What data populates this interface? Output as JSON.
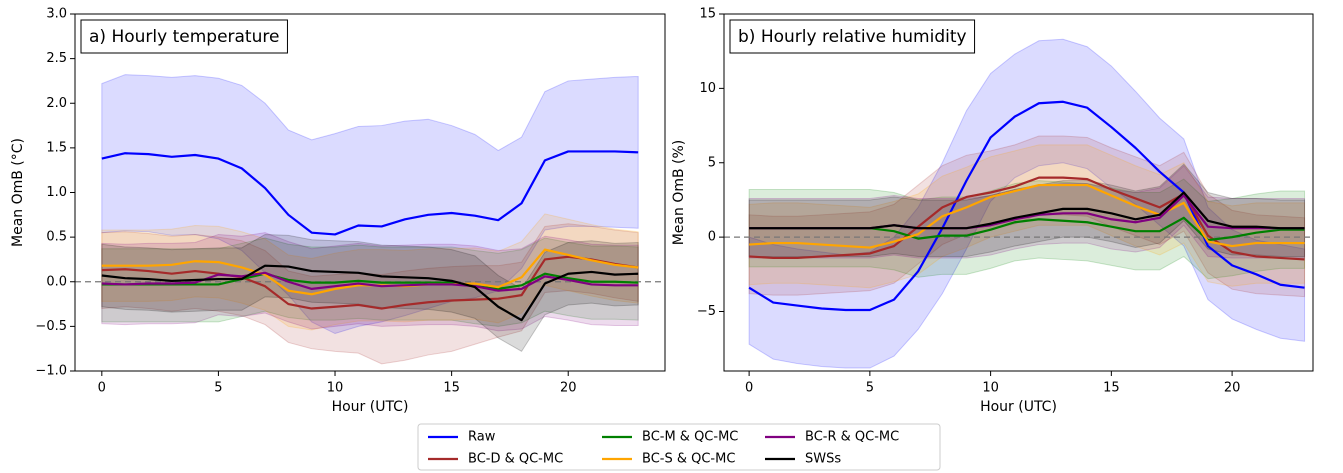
{
  "chart_data": [
    {
      "type": "line",
      "title": "a) Hourly temperature",
      "xlabel": "Hour (UTC)",
      "ylabel": "Mean OmB (°C)",
      "xlim": [
        -1.15,
        24.15
      ],
      "ylim": [
        -1.0,
        3.0
      ],
      "xticks": [
        0,
        5,
        10,
        15,
        20
      ],
      "yticks": [
        {
          "value": -1.0,
          "label": "−1.0"
        },
        {
          "value": -0.5,
          "label": "−0.5"
        },
        {
          "value": 0.0,
          "label": "0.0"
        },
        {
          "value": 0.5,
          "label": "0.5"
        },
        {
          "value": 1.0,
          "label": "1.0"
        },
        {
          "value": 1.5,
          "label": "1.5"
        },
        {
          "value": 2.0,
          "label": "2.0"
        },
        {
          "value": 2.5,
          "label": "2.5"
        },
        {
          "value": 3.0,
          "label": "3.0"
        }
      ],
      "reference_line": 0,
      "x": [
        0,
        1,
        2,
        3,
        4,
        5,
        6,
        7,
        8,
        9,
        10,
        11,
        12,
        13,
        14,
        15,
        16,
        17,
        18,
        19,
        20,
        21,
        22,
        23
      ],
      "series": [
        {
          "values": [
            1.38,
            1.44,
            1.43,
            1.4,
            1.42,
            1.38,
            1.27,
            1.05,
            0.75,
            0.55,
            0.53,
            0.63,
            0.62,
            0.7,
            0.75,
            0.77,
            0.74,
            0.69,
            0.88,
            1.36,
            1.46,
            1.46,
            1.46,
            1.45
          ],
          "upper": [
            2.22,
            2.32,
            2.31,
            2.29,
            2.31,
            2.28,
            2.2,
            2.0,
            1.7,
            1.59,
            1.66,
            1.74,
            1.75,
            1.8,
            1.82,
            1.75,
            1.65,
            1.47,
            1.62,
            2.13,
            2.25,
            2.27,
            2.29,
            2.3
          ],
          "lower": [
            0.55,
            0.57,
            0.56,
            0.52,
            0.53,
            0.48,
            0.35,
            0.1,
            -0.15,
            -0.45,
            -0.58,
            -0.5,
            -0.45,
            -0.38,
            -0.3,
            -0.22,
            -0.18,
            -0.1,
            0.15,
            0.58,
            0.62,
            0.62,
            0.61,
            0.6
          ]
        },
        {
          "values": [
            0.13,
            0.14,
            0.12,
            0.09,
            0.12,
            0.09,
            0.05,
            -0.05,
            -0.25,
            -0.3,
            -0.28,
            -0.26,
            -0.3,
            -0.26,
            -0.23,
            -0.21,
            -0.2,
            -0.19,
            -0.15,
            0.25,
            0.28,
            0.25,
            0.2,
            0.16
          ],
          "upper": [
            0.55,
            0.56,
            0.54,
            0.51,
            0.53,
            0.5,
            0.46,
            0.35,
            0.12,
            0.06,
            0.08,
            0.1,
            0.08,
            0.12,
            0.15,
            0.17,
            0.18,
            0.18,
            0.22,
            0.62,
            0.65,
            0.62,
            0.58,
            0.55
          ],
          "lower": [
            -0.3,
            -0.28,
            -0.3,
            -0.33,
            -0.3,
            -0.33,
            -0.38,
            -0.48,
            -0.68,
            -0.75,
            -0.78,
            -0.8,
            -0.92,
            -0.88,
            -0.82,
            -0.78,
            -0.7,
            -0.62,
            -0.55,
            -0.12,
            -0.1,
            -0.13,
            -0.18,
            -0.22
          ]
        },
        {
          "values": [
            -0.03,
            -0.03,
            -0.03,
            -0.03,
            -0.03,
            -0.03,
            0.03,
            0.09,
            0.02,
            -0.01,
            -0.01,
            0.01,
            -0.01,
            -0.01,
            -0.01,
            -0.01,
            -0.05,
            -0.08,
            -0.04,
            0.09,
            0.04,
            0.0,
            0.0,
            -0.01
          ],
          "upper": [
            0.37,
            0.37,
            0.37,
            0.37,
            0.37,
            0.37,
            0.43,
            0.49,
            0.42,
            0.39,
            0.39,
            0.41,
            0.39,
            0.39,
            0.39,
            0.39,
            0.35,
            0.32,
            0.36,
            0.49,
            0.44,
            0.4,
            0.4,
            0.39
          ],
          "lower": [
            -0.45,
            -0.45,
            -0.45,
            -0.45,
            -0.45,
            -0.45,
            -0.39,
            -0.33,
            -0.4,
            -0.43,
            -0.43,
            -0.41,
            -0.43,
            -0.43,
            -0.43,
            -0.43,
            -0.47,
            -0.5,
            -0.46,
            -0.33,
            -0.38,
            -0.42,
            -0.42,
            -0.43
          ]
        },
        {
          "values": [
            0.18,
            0.18,
            0.18,
            0.19,
            0.23,
            0.22,
            0.16,
            0.08,
            -0.1,
            -0.14,
            -0.08,
            -0.04,
            -0.04,
            -0.05,
            -0.03,
            -0.03,
            -0.02,
            -0.06,
            0.05,
            0.36,
            0.3,
            0.24,
            0.19,
            0.16
          ],
          "upper": [
            0.58,
            0.58,
            0.58,
            0.59,
            0.63,
            0.62,
            0.56,
            0.48,
            0.3,
            0.26,
            0.32,
            0.36,
            0.36,
            0.35,
            0.37,
            0.37,
            0.38,
            0.34,
            0.45,
            0.76,
            0.7,
            0.64,
            0.59,
            0.56
          ],
          "lower": [
            -0.22,
            -0.22,
            -0.22,
            -0.21,
            -0.17,
            -0.18,
            -0.24,
            -0.32,
            -0.5,
            -0.54,
            -0.48,
            -0.44,
            -0.44,
            -0.45,
            -0.43,
            -0.43,
            -0.42,
            -0.46,
            -0.35,
            -0.04,
            -0.1,
            -0.16,
            -0.21,
            -0.24
          ]
        },
        {
          "values": [
            -0.02,
            -0.03,
            -0.02,
            -0.02,
            -0.01,
            0.08,
            0.06,
            0.1,
            0.0,
            -0.08,
            -0.05,
            -0.02,
            -0.05,
            -0.04,
            -0.03,
            -0.03,
            -0.05,
            -0.1,
            -0.08,
            0.06,
            0.02,
            -0.03,
            -0.04,
            -0.04
          ],
          "upper": [
            0.43,
            0.42,
            0.43,
            0.43,
            0.44,
            0.53,
            0.51,
            0.55,
            0.45,
            0.37,
            0.4,
            0.43,
            0.4,
            0.41,
            0.42,
            0.42,
            0.4,
            0.35,
            0.37,
            0.51,
            0.47,
            0.42,
            0.41,
            0.41
          ],
          "lower": [
            -0.47,
            -0.48,
            -0.47,
            -0.47,
            -0.46,
            -0.37,
            -0.39,
            -0.35,
            -0.45,
            -0.53,
            -0.5,
            -0.47,
            -0.5,
            -0.49,
            -0.48,
            -0.48,
            -0.5,
            -0.55,
            -0.53,
            -0.39,
            -0.43,
            -0.48,
            -0.49,
            -0.49
          ]
        },
        {
          "values": [
            0.07,
            0.04,
            0.03,
            0.01,
            0.02,
            0.03,
            0.03,
            0.18,
            0.17,
            0.12,
            0.11,
            0.1,
            0.06,
            0.05,
            0.04,
            0.01,
            -0.06,
            -0.28,
            -0.43,
            -0.02,
            0.09,
            0.11,
            0.08,
            0.09
          ],
          "upper": [
            0.42,
            0.39,
            0.38,
            0.36,
            0.37,
            0.38,
            0.38,
            0.53,
            0.52,
            0.47,
            0.46,
            0.45,
            0.41,
            0.4,
            0.39,
            0.36,
            0.29,
            0.07,
            -0.08,
            0.33,
            0.44,
            0.46,
            0.43,
            0.44
          ],
          "lower": [
            -0.28,
            -0.31,
            -0.32,
            -0.34,
            -0.33,
            -0.32,
            -0.32,
            -0.17,
            -0.18,
            -0.23,
            -0.24,
            -0.25,
            -0.29,
            -0.3,
            -0.31,
            -0.34,
            -0.41,
            -0.63,
            -0.78,
            -0.37,
            -0.26,
            -0.24,
            -0.27,
            -0.26
          ]
        }
      ]
    },
    {
      "type": "line",
      "title": "b) Hourly relative humidity",
      "xlabel": "Hour (UTC)",
      "ylabel": "Mean OmB (%)",
      "xlim": [
        -1.04,
        23.35
      ],
      "ylim": [
        -9,
        15
      ],
      "xticks": [
        0,
        5,
        10,
        15,
        20
      ],
      "yticks": [
        {
          "value": -5,
          "label": "−5"
        },
        0,
        5,
        10,
        15
      ],
      "reference_line": 0,
      "x": [
        0,
        1,
        2,
        3,
        4,
        5,
        6,
        7,
        8,
        9,
        10,
        11,
        12,
        13,
        14,
        15,
        16,
        17,
        18,
        19,
        20,
        21,
        22,
        23
      ],
      "series": [
        {
          "values": [
            -3.4,
            -4.4,
            -4.6,
            -4.8,
            -4.9,
            -4.9,
            -4.2,
            -2.3,
            0.6,
            3.8,
            6.7,
            8.1,
            9.0,
            9.1,
            8.7,
            7.4,
            6.0,
            4.4,
            3.0,
            -0.6,
            -1.9,
            -2.5,
            -3.2,
            -3.4
          ],
          "upper": [
            0.0,
            -0.5,
            -0.8,
            -1.0,
            -1.2,
            -1.0,
            0.0,
            2.0,
            5.0,
            8.5,
            11.0,
            12.3,
            13.2,
            13.3,
            12.8,
            11.5,
            9.8,
            8.0,
            6.6,
            2.0,
            0.5,
            -0.2,
            -0.5,
            -0.8
          ],
          "lower": [
            -7.2,
            -8.2,
            -8.5,
            -8.7,
            -8.8,
            -8.8,
            -8.0,
            -6.2,
            -3.8,
            -0.8,
            2.4,
            4.0,
            4.8,
            5.0,
            4.6,
            3.3,
            2.2,
            0.8,
            -0.6,
            -4.2,
            -5.5,
            -6.2,
            -6.8,
            -7.0
          ]
        },
        {
          "values": [
            -1.3,
            -1.4,
            -1.4,
            -1.3,
            -1.2,
            -1.1,
            -0.6,
            0.7,
            2.0,
            2.7,
            3.0,
            3.4,
            4.0,
            4.0,
            3.9,
            3.2,
            2.6,
            2.0,
            2.9,
            0.1,
            -1.0,
            -1.3,
            -1.4,
            -1.5
          ],
          "upper": [
            1.5,
            1.4,
            1.4,
            1.5,
            1.6,
            1.7,
            2.2,
            3.5,
            4.8,
            5.5,
            5.8,
            6.2,
            6.8,
            6.8,
            6.7,
            6.0,
            5.4,
            4.8,
            5.7,
            2.9,
            1.8,
            1.5,
            1.4,
            1.3
          ],
          "lower": [
            -3.8,
            -3.9,
            -3.9,
            -3.8,
            -3.7,
            -3.6,
            -3.1,
            -1.8,
            -0.5,
            0.2,
            0.5,
            0.9,
            1.5,
            1.5,
            1.4,
            0.7,
            0.1,
            -0.5,
            0.4,
            -2.4,
            -3.5,
            -3.8,
            -3.9,
            -4.0
          ]
        },
        {
          "values": [
            0.6,
            0.6,
            0.6,
            0.6,
            0.6,
            0.6,
            0.4,
            -0.1,
            0.1,
            0.1,
            0.5,
            1.0,
            1.2,
            1.1,
            1.0,
            0.7,
            0.4,
            0.4,
            1.3,
            -0.2,
            0.0,
            0.3,
            0.5,
            0.5
          ],
          "upper": [
            3.2,
            3.2,
            3.2,
            3.2,
            3.2,
            3.2,
            3.0,
            2.5,
            2.7,
            2.7,
            3.1,
            3.6,
            3.8,
            3.7,
            3.6,
            3.3,
            3.0,
            3.0,
            3.9,
            2.4,
            2.6,
            2.9,
            3.1,
            3.1
          ],
          "lower": [
            -2.0,
            -2.0,
            -2.0,
            -2.0,
            -2.0,
            -2.0,
            -2.2,
            -2.7,
            -2.5,
            -2.5,
            -2.1,
            -1.6,
            -1.4,
            -1.5,
            -1.6,
            -1.9,
            -2.2,
            -2.2,
            -1.3,
            -2.8,
            -2.6,
            -2.3,
            -2.1,
            -2.1
          ]
        },
        {
          "values": [
            -0.5,
            -0.4,
            -0.4,
            -0.5,
            -0.6,
            -0.7,
            -0.3,
            0.2,
            1.4,
            2.0,
            2.7,
            3.1,
            3.5,
            3.5,
            3.5,
            2.8,
            2.1,
            1.5,
            2.3,
            -0.3,
            -0.6,
            -0.4,
            -0.4,
            -0.4
          ],
          "upper": [
            2.2,
            2.3,
            2.3,
            2.2,
            2.1,
            2.0,
            2.4,
            2.9,
            4.1,
            4.7,
            5.4,
            5.8,
            6.2,
            6.2,
            6.2,
            5.5,
            4.8,
            4.2,
            5.0,
            2.4,
            2.1,
            2.3,
            2.3,
            2.3
          ],
          "lower": [
            -3.2,
            -3.1,
            -3.1,
            -3.2,
            -3.3,
            -3.4,
            -3.0,
            -2.5,
            -1.3,
            -0.7,
            0.0,
            0.4,
            0.8,
            0.8,
            0.8,
            0.1,
            -0.6,
            -1.2,
            -0.4,
            -3.0,
            -3.3,
            -3.1,
            -3.1,
            -3.1
          ]
        },
        {
          "values": [
            0.6,
            0.6,
            0.6,
            0.6,
            0.6,
            0.6,
            0.8,
            0.6,
            0.6,
            0.6,
            0.8,
            1.2,
            1.5,
            1.6,
            1.6,
            1.2,
            1.0,
            1.3,
            2.8,
            0.7,
            0.6,
            0.6,
            0.6,
            0.6
          ],
          "upper": [
            2.6,
            2.6,
            2.6,
            2.6,
            2.6,
            2.6,
            2.8,
            2.6,
            2.6,
            2.6,
            2.8,
            3.2,
            3.5,
            3.6,
            3.6,
            3.2,
            3.0,
            3.3,
            4.8,
            2.7,
            2.6,
            2.6,
            2.6,
            2.6
          ],
          "lower": [
            -1.4,
            -1.4,
            -1.4,
            -1.4,
            -1.4,
            -1.4,
            -1.2,
            -1.4,
            -1.4,
            -1.4,
            -1.2,
            -0.8,
            -0.5,
            -0.4,
            -0.4,
            -0.8,
            -1.0,
            -0.7,
            0.8,
            -1.3,
            -1.4,
            -1.4,
            -1.4,
            -1.4
          ]
        },
        {
          "values": [
            0.6,
            0.6,
            0.6,
            0.6,
            0.6,
            0.6,
            0.8,
            0.6,
            0.6,
            0.6,
            0.9,
            1.3,
            1.6,
            1.9,
            1.9,
            1.6,
            1.2,
            1.5,
            3.0,
            1.1,
            0.7,
            0.7,
            0.6,
            0.6
          ],
          "upper": [
            2.5,
            2.5,
            2.5,
            2.5,
            2.5,
            2.5,
            2.7,
            2.5,
            2.5,
            2.5,
            2.8,
            3.2,
            3.5,
            3.8,
            3.8,
            3.5,
            3.1,
            3.4,
            4.9,
            3.0,
            2.6,
            2.6,
            2.5,
            2.5
          ],
          "lower": [
            -1.3,
            -1.3,
            -1.3,
            -1.3,
            -1.3,
            -1.3,
            -1.1,
            -1.3,
            -1.3,
            -1.3,
            -1.0,
            -0.6,
            -0.3,
            0.0,
            0.0,
            -0.3,
            -0.7,
            -0.4,
            1.1,
            -0.8,
            -1.2,
            -1.2,
            -1.3,
            -1.3
          ]
        }
      ]
    }
  ],
  "legend": {
    "ncol": 3,
    "position": "bottom",
    "entries": [
      {
        "name": "Raw",
        "color": "#0000ff"
      },
      {
        "name": "BC-D & QC-MC",
        "color": "#a52a2a"
      },
      {
        "name": "BC-M & QC-MC",
        "color": "#008000"
      },
      {
        "name": "BC-S & QC-MC",
        "color": "#ffa500"
      },
      {
        "name": "BC-R & QC-MC",
        "color": "#800080"
      },
      {
        "name": "SWSs",
        "color": "#000000"
      }
    ]
  }
}
